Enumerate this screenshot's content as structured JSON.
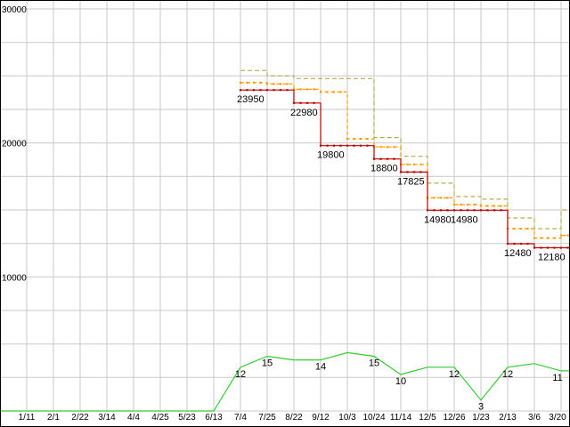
{
  "chart_data": {
    "type": "line",
    "title": "",
    "background": "#ffffff",
    "grid_color": "#c9c9c9",
    "frame_color": "#000000",
    "x_categories": [
      "1/11",
      "2/1",
      "2/22",
      "3/14",
      "4/4",
      "4/25",
      "5/23",
      "6/13",
      "7/4",
      "7/25",
      "8/22",
      "9/12",
      "10/3",
      "10/24",
      "11/14",
      "12/5",
      "12/26",
      "1/23",
      "2/13",
      "3/6",
      "3/20"
    ],
    "y_axis": {
      "min": 0,
      "max": 30000,
      "minor_step": 2500,
      "labeled_ticks": [
        30000,
        20000,
        10000
      ]
    },
    "price_series": [
      {
        "name": "highest-price",
        "color": "#b0b052",
        "dash": "5,3",
        "markers": false,
        "start_index": 8,
        "values": [
          25400,
          25000,
          24800,
          24800,
          24800,
          20400,
          19000,
          17000,
          16000,
          15800,
          14400,
          13600,
          15000
        ],
        "point_labels": []
      },
      {
        "name": "average-price",
        "color": "#ff9900",
        "dash": "4,3",
        "markers": true,
        "start_index": 8,
        "values": [
          24500,
          24400,
          24000,
          23800,
          20300,
          19700,
          18400,
          15900,
          15400,
          15300,
          13600,
          12900,
          13100
        ],
        "point_labels": []
      },
      {
        "name": "lowest-price",
        "color": "#bb0000",
        "dash": "",
        "markers": true,
        "start_index": 8,
        "values": [
          23950,
          23950,
          22980,
          19800,
          19800,
          18800,
          17825,
          14980,
          14980,
          14980,
          12480,
          12180,
          12180
        ],
        "point_labels": [
          {
            "i": 0,
            "text": "23950"
          },
          {
            "i": 2,
            "text": "22980"
          },
          {
            "i": 3,
            "text": "19800"
          },
          {
            "i": 5,
            "text": "18800"
          },
          {
            "i": 6,
            "text": "17825"
          },
          {
            "i": 7,
            "text": "14980"
          },
          {
            "i": 8,
            "text": "14980"
          },
          {
            "i": 10,
            "text": "12480"
          },
          {
            "i": 12,
            "text": "12180"
          }
        ]
      }
    ],
    "store_series": {
      "name": "store-count",
      "color": "#33cc33",
      "values": [
        0,
        0,
        0,
        0,
        0,
        0,
        0,
        0,
        12,
        15,
        14,
        14,
        16,
        15,
        10,
        12,
        12,
        3,
        12,
        13,
        11
      ],
      "point_labels": [
        {
          "i": 8,
          "text": "12"
        },
        {
          "i": 9,
          "text": "15"
        },
        {
          "i": 11,
          "text": "14"
        },
        {
          "i": 13,
          "text": "15"
        },
        {
          "i": 14,
          "text": "10"
        },
        {
          "i": 16,
          "text": "12"
        },
        {
          "i": 17,
          "text": "3"
        },
        {
          "i": 18,
          "text": "12"
        },
        {
          "i": 20,
          "text": "11"
        }
      ]
    }
  }
}
